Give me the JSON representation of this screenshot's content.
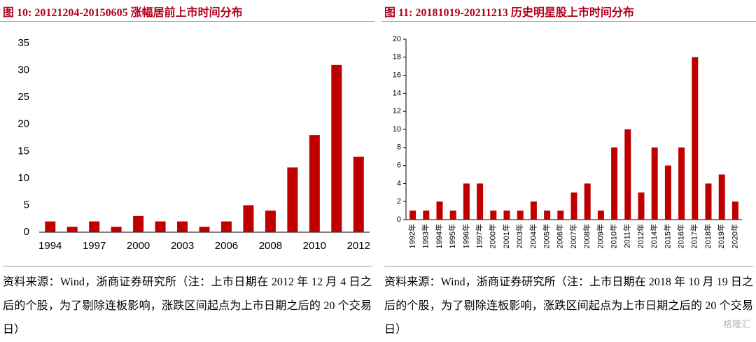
{
  "chart_data": [
    {
      "type": "bar",
      "title": "图 10: 20121204-20150605 涨幅居前上市时间分布",
      "categories": [
        "1994",
        null,
        "1997",
        null,
        "2000",
        null,
        "2003",
        null,
        "2006",
        null,
        "2008",
        null,
        "2010",
        null,
        "2012"
      ],
      "values": [
        2,
        1,
        2,
        1,
        3,
        2,
        2,
        1,
        2,
        5,
        4,
        12,
        18,
        31,
        14
      ],
      "color": "#c00000",
      "ylim": [
        0,
        35
      ],
      "yticks": [
        0,
        5,
        10,
        15,
        20,
        25,
        30,
        35
      ],
      "y_axis_line": false,
      "rotate_labels": false,
      "note": "资料来源：Wind，浙商证券研究所（注：上市日期在 2012 年 12 月 4 日之后的个股，为了剔除连板影响，涨跌区间起点为上市日期之后的 20 个交易日）"
    },
    {
      "type": "bar",
      "title": "图 11: 20181019-20211213 历史明星股上市时间分布",
      "categories": [
        "1992年",
        "1993年",
        "1994年",
        "1995年",
        "1996年",
        "1997年",
        "2000年",
        "2001年",
        "2003年",
        "2004年",
        "2005年",
        "2006年",
        "2007年",
        "2008年",
        "2009年",
        "2010年",
        "2011年",
        "2012年",
        "2014年",
        "2015年",
        "2016年",
        "2017年",
        "2018年",
        "2019年",
        "2020年"
      ],
      "values": [
        1,
        1,
        2,
        1,
        4,
        4,
        1,
        1,
        1,
        2,
        1,
        1,
        3,
        4,
        1,
        8,
        10,
        3,
        8,
        6,
        8,
        18,
        4,
        5,
        2
      ],
      "color": "#c00000",
      "ylim": [
        0,
        20
      ],
      "yticks": [
        0,
        2,
        4,
        6,
        8,
        10,
        12,
        14,
        16,
        18,
        20
      ],
      "y_axis_line": true,
      "rotate_labels": true,
      "note": "资料来源：Wind，浙商证券研究所（注：上市日期在 2018 年 10 月 19 日之后的个股，为了剔除连板影响，涨跌区间起点为上市日期之后的 20 个交易日）"
    }
  ],
  "watermark": "格隆汇"
}
